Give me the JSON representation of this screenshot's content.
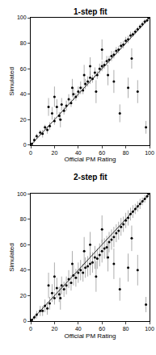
{
  "chart_data": [
    {
      "type": "scatter",
      "title": "1-step fit",
      "x_label": "Official PM Rating",
      "y_label": "Simulated",
      "color": "#000000",
      "marker": "circle",
      "x": [
        1,
        3,
        5,
        8,
        10,
        12,
        14,
        16,
        18,
        20,
        22,
        24,
        26,
        28,
        30,
        32,
        34,
        36,
        38,
        40,
        42,
        44,
        46,
        48,
        50,
        52,
        54,
        56,
        58,
        60,
        62,
        64,
        66,
        68,
        70,
        72,
        74,
        76,
        78,
        80,
        82,
        84,
        86,
        88,
        90,
        92,
        94,
        96,
        98,
        99,
        15,
        20,
        25,
        35,
        45,
        55,
        65,
        75,
        82,
        90,
        97,
        60,
        70,
        85,
        50
      ],
      "values": [
        1,
        4,
        7,
        10,
        9,
        14,
        12,
        15,
        25,
        19,
        30,
        23,
        32,
        27,
        31,
        36,
        33,
        40,
        38,
        42,
        45,
        43,
        48,
        50,
        53,
        52,
        57,
        55,
        60,
        62,
        63,
        66,
        67,
        70,
        71,
        74,
        75,
        78,
        79,
        82,
        83,
        86,
        87,
        89,
        91,
        93,
        95,
        97,
        98,
        100,
        30,
        38,
        20,
        45,
        55,
        42,
        55,
        25,
        45,
        42,
        14,
        75,
        50,
        68,
        62
      ],
      "error": [
        1,
        2,
        2,
        2,
        3,
        2,
        3,
        3,
        5,
        3,
        6,
        3,
        5,
        3,
        4,
        4,
        3,
        5,
        3,
        4,
        5,
        3,
        4,
        4,
        5,
        3,
        4,
        3,
        4,
        4,
        3,
        4,
        3,
        4,
        3,
        3,
        3,
        3,
        3,
        3,
        3,
        3,
        2,
        2,
        2,
        2,
        2,
        2,
        1,
        1,
        7,
        8,
        6,
        7,
        8,
        9,
        8,
        7,
        8,
        9,
        5,
        8,
        9,
        8,
        7
      ],
      "xlim": [
        0,
        100
      ],
      "ylim": [
        0,
        100
      ],
      "xticks": [
        0,
        20,
        40,
        60,
        80,
        100
      ],
      "yticks": [
        0,
        20,
        40,
        60,
        80,
        100
      ]
    },
    {
      "type": "scatter",
      "title": "2-step fit",
      "x_label": "Official PM Rating",
      "y_label": "Simulated",
      "color": "#000000",
      "marker": "circle",
      "x": [
        1,
        3,
        5,
        8,
        10,
        12,
        14,
        16,
        18,
        20,
        22,
        24,
        26,
        28,
        30,
        32,
        34,
        36,
        38,
        40,
        42,
        44,
        46,
        48,
        50,
        52,
        54,
        56,
        58,
        60,
        62,
        64,
        66,
        68,
        70,
        72,
        74,
        76,
        78,
        80,
        82,
        84,
        86,
        88,
        90,
        92,
        94,
        96,
        98,
        99,
        15,
        20,
        25,
        35,
        45,
        55,
        65,
        75,
        82,
        90,
        97,
        60,
        70,
        85,
        50
      ],
      "values": [
        1,
        3,
        5,
        8,
        8,
        12,
        10,
        14,
        22,
        18,
        26,
        21,
        28,
        25,
        28,
        33,
        30,
        36,
        34,
        38,
        40,
        38,
        42,
        43,
        45,
        46,
        50,
        49,
        52,
        55,
        57,
        58,
        62,
        64,
        66,
        69,
        71,
        74,
        76,
        79,
        81,
        84,
        86,
        88,
        90,
        92,
        94,
        96,
        98,
        100,
        28,
        35,
        18,
        45,
        55,
        35,
        50,
        25,
        42,
        40,
        13,
        72,
        45,
        65,
        60
      ],
      "error": [
        1,
        2,
        3,
        4,
        4,
        5,
        5,
        5,
        7,
        5,
        8,
        6,
        7,
        6,
        7,
        7,
        6,
        8,
        7,
        8,
        8,
        7,
        8,
        8,
        9,
        8,
        9,
        8,
        9,
        9,
        8,
        9,
        8,
        8,
        8,
        7,
        7,
        7,
        6,
        6,
        6,
        5,
        5,
        4,
        4,
        4,
        3,
        3,
        2,
        1,
        10,
        11,
        9,
        10,
        11,
        12,
        11,
        9,
        11,
        12,
        6,
        11,
        12,
        10,
        10
      ],
      "xlim": [
        0,
        100
      ],
      "ylim": [
        0,
        100
      ],
      "xticks": [
        0,
        20,
        40,
        60,
        80,
        100
      ],
      "yticks": [
        0,
        20,
        40,
        60,
        80,
        100
      ]
    }
  ]
}
